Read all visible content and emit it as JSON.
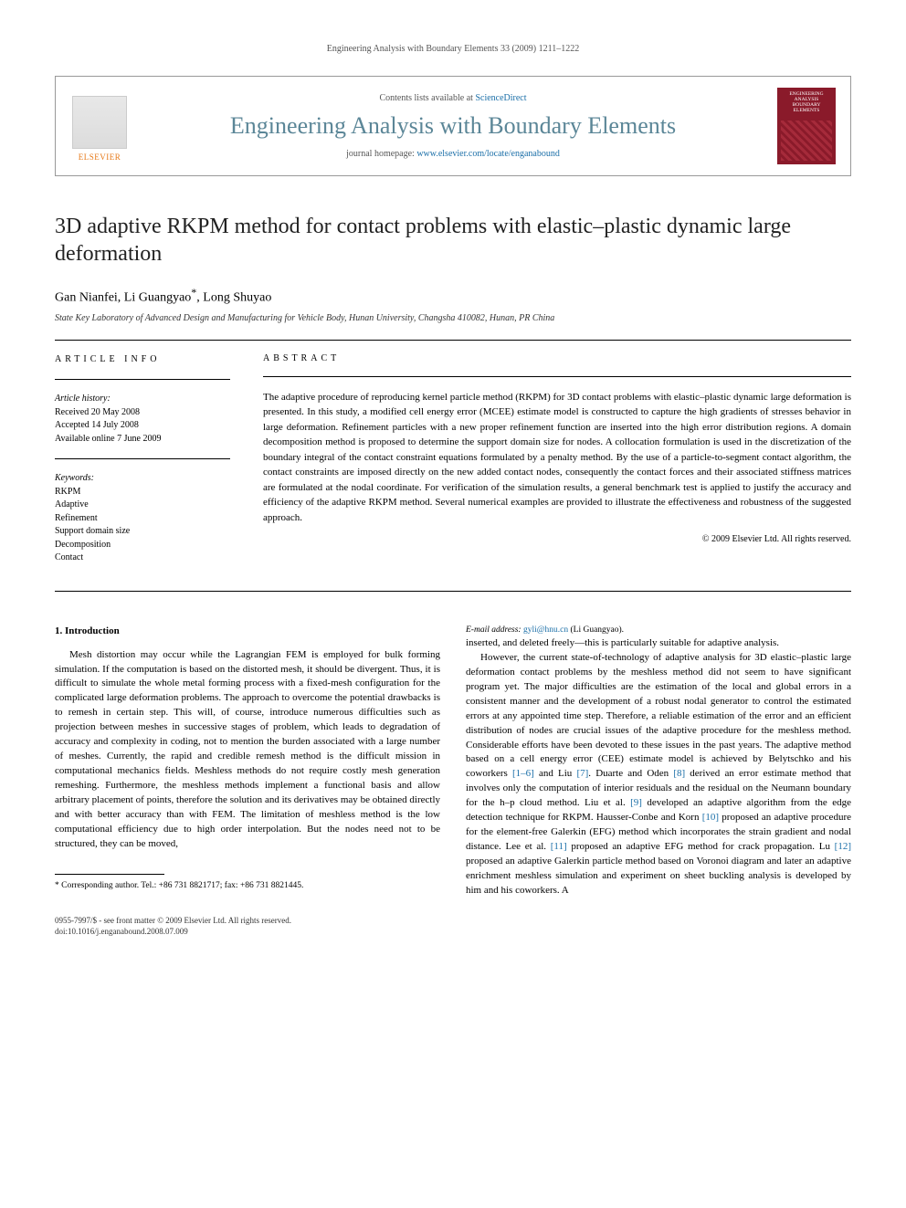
{
  "running_header": "Engineering Analysis with Boundary Elements 33 (2009) 1211–1222",
  "masthead": {
    "publisher": "ELSEVIER",
    "contents_prefix": "Contents lists available at ",
    "contents_link": "ScienceDirect",
    "journal_name": "Engineering Analysis with Boundary Elements",
    "homepage_prefix": "journal homepage: ",
    "homepage_url": "www.elsevier.com/locate/enganabound",
    "cover_title": "ENGINEERING ANALYSIS BOUNDARY ELEMENTS"
  },
  "article": {
    "title": "3D adaptive RKPM method for contact problems with elastic–plastic dynamic large deformation",
    "authors": "Gan Nianfei, Li Guangyao",
    "corr_mark": "*",
    "authors_tail": ", Long Shuyao",
    "affiliation": "State Key Laboratory of Advanced Design and Manufacturing for Vehicle Body, Hunan University, Changsha 410082, Hunan, PR China"
  },
  "info": {
    "heading": "ARTICLE INFO",
    "history_label": "Article history:",
    "received": "Received 20 May 2008",
    "accepted": "Accepted 14 July 2008",
    "online": "Available online 7 June 2009",
    "keywords_label": "Keywords:",
    "keywords": [
      "RKPM",
      "Adaptive",
      "Refinement",
      "Support domain size",
      "Decomposition",
      "Contact"
    ]
  },
  "abstract": {
    "heading": "ABSTRACT",
    "text": "The adaptive procedure of reproducing kernel particle method (RKPM) for 3D contact problems with elastic–plastic dynamic large deformation is presented. In this study, a modified cell energy error (MCEE) estimate model is constructed to capture the high gradients of stresses behavior in large deformation. Refinement particles with a new proper refinement function are inserted into the high error distribution regions. A domain decomposition method is proposed to determine the support domain size for nodes. A collocation formulation is used in the discretization of the boundary integral of the contact constraint equations formulated by a penalty method. By the use of a particle-to-segment contact algorithm, the contact constraints are imposed directly on the new added contact nodes, consequently the contact forces and their associated stiffness matrices are formulated at the nodal coordinate. For verification of the simulation results, a general benchmark test is applied to justify the accuracy and efficiency of the adaptive RKPM method. Several numerical examples are provided to illustrate the effectiveness and robustness of the suggested approach.",
    "copyright": "© 2009 Elsevier Ltd. All rights reserved."
  },
  "body": {
    "section_heading": "1.  Introduction",
    "col1_p1": "Mesh distortion may occur while the Lagrangian FEM is employed for bulk forming simulation. If the computation is based on the distorted mesh, it should be divergent. Thus, it is difficult to simulate the whole metal forming process with a fixed-mesh configuration for the complicated large deformation problems. The approach to overcome the potential drawbacks is to remesh in certain step. This will, of course, introduce numerous difficulties such as projection between meshes in successive stages of problem, which leads to degradation of accuracy and complexity in coding, not to mention the burden associated with a large number of meshes. Currently, the rapid and credible remesh method is the difficult mission in computational mechanics fields. Meshless methods do not require costly mesh generation remeshing. Furthermore, the meshless methods implement a functional basis and allow arbitrary placement of points, therefore the solution and its derivatives may be obtained directly and with better accuracy than with FEM. The limitation of meshless method is the low computational efficiency due to high order interpolation. But the nodes need not to be structured, they can be moved,",
    "col2_p1": "inserted, and deleted freely—this is particularly suitable for adaptive analysis.",
    "col2_p2a": "However, the current state-of-technology of adaptive analysis for 3D elastic–plastic large deformation contact problems by the meshless method did not seem to have significant program yet. The major difficulties are the estimation of the local and global errors in a consistent manner and the development of a robust nodal generator to control the estimated errors at any appointed time step. Therefore, a reliable estimation of the error and an efficient distribution of nodes are crucial issues of the adaptive procedure for the meshless method. Considerable efforts have been devoted to these issues in the past years. The adaptive method based on a cell energy error (CEE) estimate model is achieved by Belytschko and his coworkers ",
    "ref16": "[1–6]",
    "col2_p2b": " and Liu ",
    "ref7": "[7]",
    "col2_p2c": ". Duarte and Oden ",
    "ref8": "[8]",
    "col2_p2d": " derived an error estimate method that involves only the computation of interior residuals and the residual on the Neumann boundary for the h–p cloud method. Liu et al. ",
    "ref9": "[9]",
    "col2_p2e": " developed an adaptive algorithm from the edge detection technique for RKPM. Hausser-Conbe and Korn ",
    "ref10": "[10]",
    "col2_p2f": " proposed an adaptive procedure for the element-free Galerkin (EFG) method which incorporates the strain gradient and nodal distance. Lee et al. ",
    "ref11": "[11]",
    "col2_p2g": " proposed an adaptive EFG method for crack propagation. Lu ",
    "ref12": "[12]",
    "col2_p2h": " proposed an adaptive Galerkin particle method based on Voronoi diagram and later an adaptive enrichment meshless simulation and experiment on sheet buckling analysis is developed by him and his coworkers. A"
  },
  "footnote": {
    "corr": "* Corresponding author. Tel.: +86 731 8821717; fax: +86 731 8821445.",
    "email_label": "E-mail address: ",
    "email": "gyli@hnu.cn",
    "email_tail": " (Li Guangyao)."
  },
  "bottom": {
    "line1": "0955-7997/$ - see front matter © 2009 Elsevier Ltd. All rights reserved.",
    "line2": "doi:10.1016/j.enganabound.2008.07.009"
  },
  "colors": {
    "link": "#1b6fa8",
    "journal_title": "#5b8697",
    "elsevier_orange": "#e67817",
    "cover_red": "#8a1a2a"
  }
}
